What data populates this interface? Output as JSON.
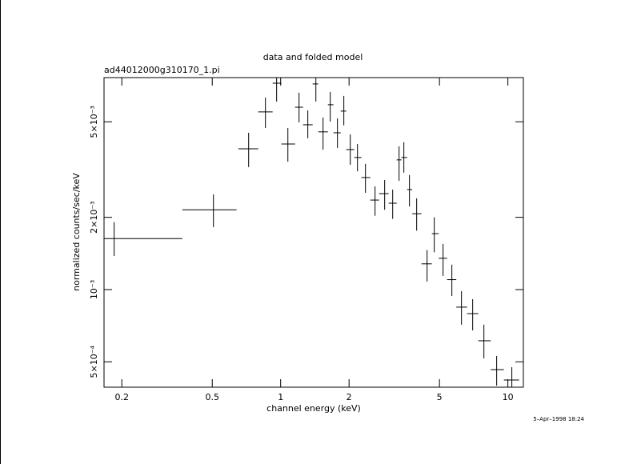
{
  "chart_data": {
    "type": "scatter",
    "title": "data and folded model",
    "subtitle": "ad44012000g310170_1.pi",
    "x_label": "channel energy (keV)",
    "y_label": "normalized counts/sec/keV",
    "timestamp": "5–Apr–1998 18:24",
    "log_x": true,
    "log_y": true,
    "color": "#000000",
    "xlim": [
      0.167,
      11.7
    ],
    "ylim": [
      0.000392,
      0.00764
    ],
    "xticks": [
      0.2,
      0.5,
      1,
      2,
      5,
      10
    ],
    "yticks": [
      {
        "value": 0.0005,
        "label": "5×10⁻⁴"
      },
      {
        "value": 0.001,
        "label": "10⁻³"
      },
      {
        "value": 0.002,
        "label": "2×10⁻³"
      },
      {
        "value": 0.005,
        "label": "5×10⁻³"
      }
    ],
    "x": [
      0.185,
      0.506,
      0.723,
      0.857,
      0.96,
      1.076,
      1.205,
      1.317,
      1.429,
      1.537,
      1.653,
      1.778,
      1.897,
      2.025,
      2.178,
      2.362,
      2.603,
      2.869,
      3.112,
      3.32,
      3.485,
      3.688,
      3.968,
      4.41,
      4.743,
      5.186,
      5.669,
      6.249,
      7.0,
      7.843,
      8.926,
      10.41
    ],
    "x_low": [
      0.167,
      0.369,
      0.651,
      0.797,
      0.922,
      1.008,
      1.157,
      1.255,
      1.383,
      1.464,
      1.614,
      1.708,
      1.837,
      1.944,
      2.108,
      2.268,
      2.48,
      2.711,
      2.988,
      3.241,
      3.401,
      3.6,
      3.795,
      4.166,
      4.629,
      4.96,
      5.401,
      5.928,
      6.613,
      7.408,
      8.404,
      9.604
    ],
    "x_high": [
      0.369,
      0.64,
      0.797,
      0.922,
      1.008,
      1.157,
      1.255,
      1.383,
      1.464,
      1.614,
      1.708,
      1.837,
      1.944,
      2.108,
      2.268,
      2.48,
      2.711,
      2.988,
      3.241,
      3.401,
      3.6,
      3.795,
      4.166,
      4.629,
      4.96,
      5.401,
      5.928,
      6.613,
      7.408,
      8.404,
      9.604,
      11.2
    ],
    "y": [
      0.00163,
      0.00215,
      0.00386,
      0.0055,
      0.00724,
      0.00404,
      0.00575,
      0.00486,
      0.00719,
      0.00454,
      0.00589,
      0.0045,
      0.00554,
      0.00383,
      0.00355,
      0.00293,
      0.00236,
      0.00251,
      0.00229,
      0.00347,
      0.00355,
      0.00261,
      0.00207,
      0.00128,
      0.00171,
      0.00135,
      0.0011,
      0.000845,
      0.000794,
      0.000612,
      0.000464,
      0.00042
    ],
    "y_low": [
      0.00138,
      0.00182,
      0.00324,
      0.00471,
      0.00607,
      0.00341,
      0.00497,
      0.00427,
      0.00607,
      0.00383,
      0.00501,
      0.00389,
      0.00483,
      0.00331,
      0.00311,
      0.00253,
      0.00203,
      0.00215,
      0.00197,
      0.00284,
      0.00307,
      0.00222,
      0.00176,
      0.00108,
      0.00143,
      0.00114,
      0.00094,
      0.000714,
      0.000676,
      0.000517,
      0.000398,
      0.000392
    ],
    "y_high": [
      0.00191,
      0.00249,
      0.0045,
      0.00631,
      0.00764,
      0.00471,
      0.00661,
      0.00558,
      0.00764,
      0.00521,
      0.00666,
      0.00517,
      0.00641,
      0.00443,
      0.00404,
      0.00334,
      0.00269,
      0.00286,
      0.00261,
      0.00395,
      0.00411,
      0.003,
      0.0024,
      0.00146,
      0.002,
      0.00155,
      0.00127,
      0.000985,
      0.000912,
      0.000714,
      0.000529,
      0.000475
    ]
  }
}
